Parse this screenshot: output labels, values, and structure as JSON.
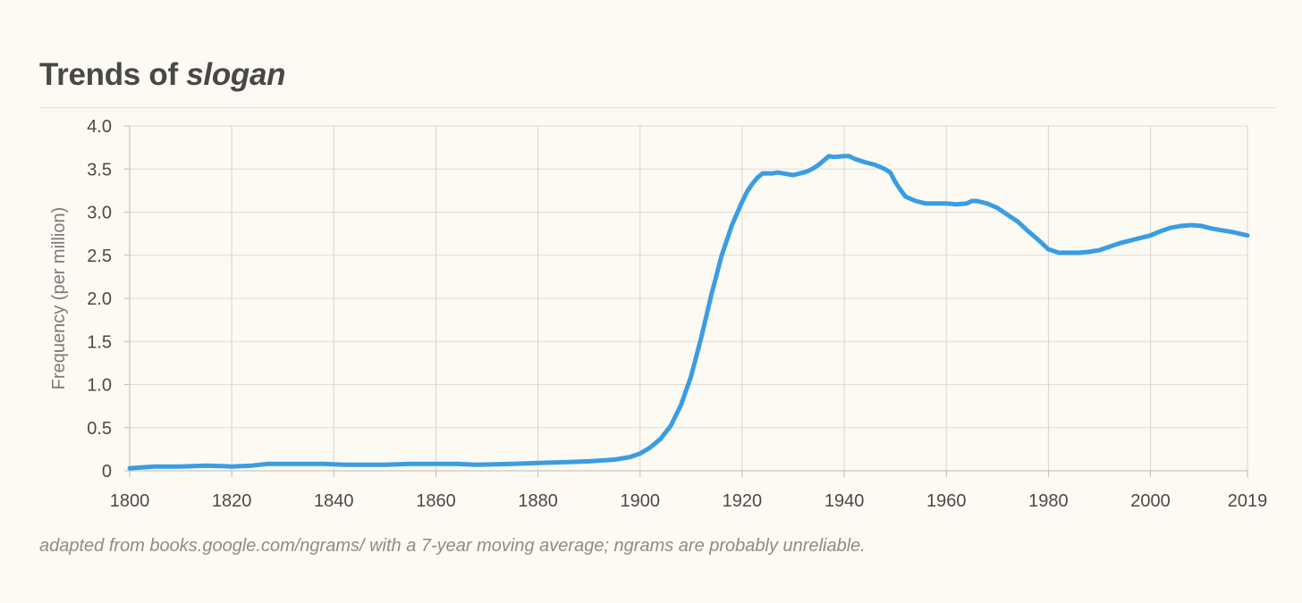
{
  "chart_data": {
    "type": "line",
    "title_prefix": "Trends of ",
    "title_term": "slogan",
    "xlabel": "",
    "ylabel": "Frequency (per million)",
    "xlim": [
      1800,
      2019
    ],
    "ylim": [
      0,
      4.0
    ],
    "x_ticks": [
      1800,
      1820,
      1840,
      1860,
      1880,
      1900,
      1920,
      1940,
      1960,
      1980,
      2000,
      2019
    ],
    "x_tick_labels": [
      "1800",
      "1820",
      "1840",
      "1860",
      "1880",
      "1900",
      "1920",
      "1940",
      "1960",
      "1980",
      "2000",
      "2019"
    ],
    "y_ticks": [
      0,
      0.5,
      1.0,
      1.5,
      2.0,
      2.5,
      3.0,
      3.5,
      4.0
    ],
    "y_tick_labels": [
      "0",
      "0.5",
      "1.0",
      "1.5",
      "2.0",
      "2.5",
      "3.0",
      "3.5",
      "4.0"
    ],
    "grid": true,
    "line_color": "#3a9de3",
    "series": [
      {
        "name": "slogan",
        "x": [
          1800,
          1805,
          1810,
          1815,
          1820,
          1824,
          1827,
          1830,
          1835,
          1838,
          1842,
          1850,
          1855,
          1860,
          1864,
          1868,
          1875,
          1880,
          1885,
          1890,
          1895,
          1898,
          1900,
          1902,
          1904,
          1906,
          1908,
          1910,
          1912,
          1914,
          1916,
          1918,
          1920,
          1921,
          1922,
          1923,
          1924,
          1925,
          1926,
          1927,
          1928,
          1930,
          1932,
          1933,
          1934,
          1935,
          1936,
          1937,
          1938,
          1940,
          1941,
          1942,
          1944,
          1946,
          1948,
          1949,
          1950,
          1951,
          1952,
          1954,
          1956,
          1958,
          1960,
          1962,
          1964,
          1965,
          1966,
          1968,
          1970,
          1972,
          1974,
          1976,
          1978,
          1980,
          1982,
          1984,
          1986,
          1988,
          1990,
          1992,
          1994,
          1996,
          1998,
          2000,
          2002,
          2004,
          2006,
          2008,
          2010,
          2012,
          2014,
          2016,
          2019
        ],
        "values": [
          0.03,
          0.05,
          0.05,
          0.06,
          0.05,
          0.06,
          0.08,
          0.08,
          0.08,
          0.08,
          0.07,
          0.07,
          0.08,
          0.08,
          0.08,
          0.07,
          0.08,
          0.09,
          0.1,
          0.11,
          0.13,
          0.16,
          0.2,
          0.27,
          0.37,
          0.52,
          0.76,
          1.1,
          1.55,
          2.05,
          2.5,
          2.85,
          3.12,
          3.24,
          3.33,
          3.4,
          3.45,
          3.45,
          3.45,
          3.46,
          3.45,
          3.43,
          3.46,
          3.48,
          3.51,
          3.55,
          3.6,
          3.65,
          3.64,
          3.65,
          3.65,
          3.62,
          3.58,
          3.55,
          3.5,
          3.46,
          3.35,
          3.26,
          3.18,
          3.13,
          3.1,
          3.1,
          3.1,
          3.09,
          3.1,
          3.13,
          3.13,
          3.1,
          3.05,
          2.97,
          2.89,
          2.78,
          2.68,
          2.57,
          2.53,
          2.53,
          2.53,
          2.54,
          2.56,
          2.6,
          2.64,
          2.67,
          2.7,
          2.73,
          2.78,
          2.82,
          2.84,
          2.85,
          2.84,
          2.81,
          2.79,
          2.77,
          2.73
        ]
      }
    ]
  },
  "footnote": "adapted from books.google.com/ngrams/ with a 7-year moving average; ngrams are probably unreliable."
}
